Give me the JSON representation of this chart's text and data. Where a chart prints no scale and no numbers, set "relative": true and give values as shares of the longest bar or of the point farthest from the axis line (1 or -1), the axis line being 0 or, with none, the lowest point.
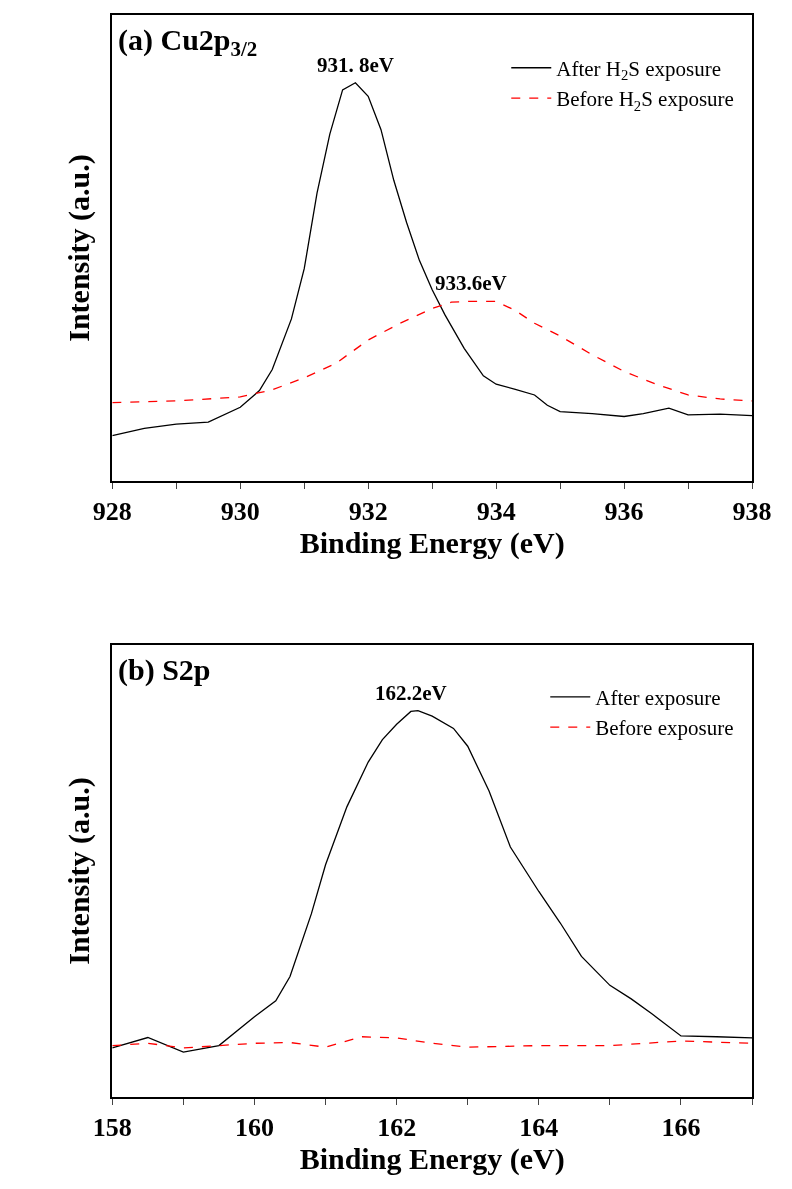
{
  "chart_data": [
    {
      "type": "line",
      "relative": true,
      "xlabel": "Binding Energy (eV)",
      "ylabel": "Intensity (a.u.)",
      "tick_labels": "x",
      "legend": "top right",
      "xlim": [
        928,
        938
      ],
      "xticks": [
        928,
        {
          "value": 929,
          "label": null
        },
        930,
        {
          "value": 931,
          "label": null
        },
        932,
        {
          "value": 933,
          "label": null
        },
        934,
        {
          "value": 935,
          "label": null
        },
        936,
        {
          "value": 937,
          "label": null
        },
        938
      ],
      "annotations": [
        "(a) Cu2p$_{3/2}$",
        {
          "text": "931. 8eV",
          "x": 931.8,
          "y": 1.0
        },
        {
          "text": "933.6eV",
          "x": 933.6,
          "y": 0.451
        }
      ],
      "series": [
        {
          "name": "After H$_{2}$S exposure",
          "color": "#000000",
          "line_style": "solid",
          "x": [
            928,
            928.5,
            929,
            929.5,
            930,
            930.3,
            930.5,
            930.8,
            931,
            931.2,
            931.4,
            931.6,
            931.8,
            932,
            932.2,
            932.4,
            932.6,
            932.8,
            933,
            933.2,
            933.5,
            933.8,
            934,
            934.3,
            934.6,
            934.8,
            935,
            935.5,
            936,
            936.3,
            936.7,
            937,
            937.5,
            938
          ],
          "values": [
            0.114,
            0.132,
            0.143,
            0.148,
            0.185,
            0.227,
            0.28,
            0.407,
            0.533,
            0.723,
            0.871,
            0.982,
            1.0,
            0.966,
            0.882,
            0.755,
            0.649,
            0.554,
            0.48,
            0.417,
            0.333,
            0.264,
            0.243,
            0.23,
            0.216,
            0.19,
            0.174,
            0.169,
            0.162,
            0.169,
            0.183,
            0.166,
            0.168,
            0.164
          ]
        },
        {
          "name": "Before H$_{2}$S exposure",
          "color": "#ff0000",
          "line_style": "dashed",
          "x": [
            928,
            929,
            930,
            930.5,
            931,
            931.5,
            932,
            932.5,
            933,
            933.3,
            933.6,
            934,
            934.3,
            934.6,
            935,
            935.5,
            936,
            936.5,
            937,
            937.5,
            938
          ],
          "values": [
            0.197,
            0.201,
            0.211,
            0.229,
            0.259,
            0.296,
            0.354,
            0.396,
            0.433,
            0.449,
            0.451,
            0.451,
            0.428,
            0.396,
            0.364,
            0.317,
            0.275,
            0.243,
            0.216,
            0.206,
            0.201
          ]
        }
      ]
    },
    {
      "type": "line",
      "relative": true,
      "xlabel": "Binding Energy (eV)",
      "ylabel": "Intensity (a.u.)",
      "tick_labels": "x",
      "legend": "top right",
      "xlim": [
        158,
        167
      ],
      "xticks": [
        158,
        {
          "value": 159,
          "label": null
        },
        160,
        {
          "value": 161,
          "label": null
        },
        162,
        {
          "value": 163,
          "label": null
        },
        164,
        {
          "value": 165,
          "label": null
        },
        166,
        {
          "value": 167,
          "label": null
        }
      ],
      "annotations": [
        "(b) S2p",
        {
          "text": "162.2eV",
          "x": 162.2,
          "y": 0.998
        }
      ],
      "series": [
        {
          "name": "After exposure",
          "color": "#000000",
          "line_style": "solid",
          "x": [
            158,
            158.5,
            159,
            159.5,
            160,
            160.3,
            160.5,
            160.8,
            161,
            161.3,
            161.6,
            161.8,
            162,
            162.2,
            162.3,
            162.5,
            162.8,
            163,
            163.3,
            163.6,
            164,
            164.3,
            164.6,
            165,
            165.3,
            165.6,
            166,
            166.5,
            167
          ],
          "values": [
            0.127,
            0.154,
            0.116,
            0.133,
            0.208,
            0.249,
            0.312,
            0.474,
            0.601,
            0.751,
            0.867,
            0.925,
            0.965,
            0.998,
            1.0,
            0.986,
            0.954,
            0.908,
            0.792,
            0.647,
            0.532,
            0.451,
            0.364,
            0.289,
            0.254,
            0.214,
            0.158,
            0.156,
            0.153
          ]
        },
        {
          "name": "Before exposure",
          "color": "#ff0000",
          "line_style": "dashed",
          "x": [
            158,
            158.5,
            159,
            160,
            160.5,
            161,
            161.5,
            162,
            162.5,
            163,
            164,
            165,
            166,
            167
          ],
          "values": [
            0.133,
            0.139,
            0.127,
            0.139,
            0.141,
            0.129,
            0.156,
            0.153,
            0.139,
            0.129,
            0.133,
            0.133,
            0.145,
            0.139
          ]
        }
      ]
    }
  ]
}
